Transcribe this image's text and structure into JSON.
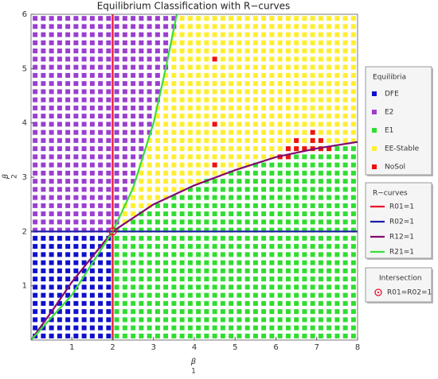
{
  "chart_data": {
    "type": "region",
    "title": "Equilibrium Classification with R−curves",
    "xlabel": "β",
    "xlabel_sub": "1",
    "ylabel": "β",
    "ylabel_sub": "2",
    "xlim": [
      0,
      8
    ],
    "ylim": [
      0,
      6
    ],
    "xticks": [
      1,
      2,
      3,
      4,
      5,
      6,
      7,
      8
    ],
    "yticks": [
      1,
      2,
      3,
      4,
      5,
      6
    ],
    "grid_size": [
      40,
      40
    ],
    "classes": {
      "title": "Equilibria",
      "items": [
        {
          "name": "DFE",
          "color": "#1010cc"
        },
        {
          "name": "E2",
          "color": "#9a3fd0"
        },
        {
          "name": "E1",
          "color": "#30dd30"
        },
        {
          "name": "EE-Stable",
          "color": "#ffee30"
        },
        {
          "name": "NoSol",
          "color": "#ee1111"
        }
      ]
    },
    "nosol": {
      "x": [
        4.5,
        4.5,
        4.5,
        6.9,
        6.5,
        6.9,
        7.1,
        6.3,
        6.5,
        6.7,
        6.9,
        7.1,
        7.3,
        6.1,
        6.3
      ],
      "y": [
        5.175,
        3.975,
        3.225,
        3.825,
        3.675,
        3.675,
        3.675,
        3.525,
        3.525,
        3.525,
        3.525,
        3.525,
        3.525,
        3.375,
        3.375
      ]
    },
    "curves": {
      "title": "R−curves",
      "series": [
        {
          "name": "R01=1",
          "color": "#e8102a",
          "x": [
            2,
            2
          ],
          "y": [
            0,
            6
          ]
        },
        {
          "name": "R02=1",
          "color": "#1c1ca8",
          "x": [
            0,
            8
          ],
          "y": [
            2,
            2
          ]
        },
        {
          "name": "R12=1",
          "color": "#820a6e",
          "x": [
            0,
            0.5,
            1,
            2,
            3,
            4,
            5,
            6,
            7,
            8
          ],
          "y": [
            0,
            0.52,
            1.07,
            2,
            2.5,
            2.85,
            3.13,
            3.37,
            3.53,
            3.65
          ]
        },
        {
          "name": "R21=1",
          "color": "#3ade3a",
          "x": [
            0,
            1,
            2,
            2.5,
            3,
            3.3,
            3.57
          ],
          "y": [
            0,
            0.83,
            2,
            2.8,
            4,
            5,
            6
          ]
        }
      ]
    },
    "intersection": {
      "title": "Intersection",
      "name": "R01=R02=1",
      "x": 2,
      "y": 2,
      "color": "#e8102a"
    }
  }
}
